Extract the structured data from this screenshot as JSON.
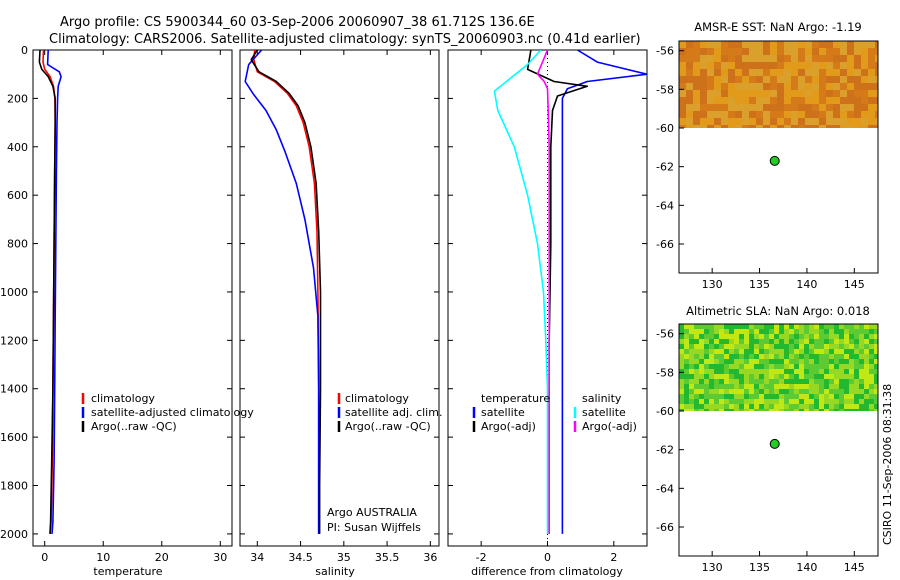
{
  "titles": {
    "line1": "Argo profile: CS 5900344_60 03-Sep-2006 20060907_38 61.712S 136.6E",
    "line2": "Climatology: CARS2006. Satellite-adjusted climatology: synTS_20060903.nc (0.41d earlier)"
  },
  "credit": "CSIRO 11-Sep-2006 08:31:38",
  "colors": {
    "climatology": "#ff0000",
    "satellite": "#0000ff",
    "argo": "#000000",
    "sat_diff_temp": "#00ffff",
    "argo_diff_sal": "#ff00ff"
  },
  "chart_data": [
    {
      "type": "line",
      "xlabel": "temperature",
      "ylabel": "",
      "xlim": [
        -2,
        32
      ],
      "ylim": [
        2050,
        0
      ],
      "xticks": [
        0,
        10,
        20,
        30
      ],
      "yticks": [
        0,
        200,
        400,
        600,
        800,
        1000,
        1200,
        1400,
        1600,
        1800,
        2000
      ],
      "legend_position": "lower-right",
      "series": [
        {
          "name": "climatology",
          "color": "#ff0000",
          "x": [
            -0.2,
            -0.3,
            0.0,
            0.9,
            1.5,
            1.75,
            1.8,
            1.7,
            1.6,
            1.5,
            1.4,
            1.3,
            1.1,
            0.9
          ],
          "y": [
            0,
            50,
            80,
            110,
            150,
            200,
            300,
            500,
            800,
            1100,
            1400,
            1700,
            1950,
            2000
          ]
        },
        {
          "name": "satellite-adjusted climatology",
          "color": "#0000ff",
          "x": [
            0.6,
            0.5,
            2.5,
            2.8,
            2.3,
            2.2,
            2.1,
            2.0,
            1.9,
            1.8,
            1.7,
            1.6,
            1.4,
            1.25
          ],
          "y": [
            0,
            60,
            90,
            110,
            150,
            200,
            300,
            500,
            800,
            1100,
            1400,
            1700,
            1950,
            2000
          ]
        },
        {
          "name": "Argo(..raw -QC)",
          "color": "#000000",
          "x": [
            -0.8,
            -0.9,
            -0.5,
            0.6,
            1.4,
            1.8,
            1.8,
            1.7,
            1.6,
            1.5,
            1.4,
            1.2,
            1.0,
            0.9
          ],
          "y": [
            0,
            50,
            80,
            110,
            150,
            200,
            300,
            500,
            800,
            1100,
            1400,
            1700,
            1950,
            2000
          ]
        }
      ],
      "legend": [
        "climatology",
        "satellite-adjusted climatology",
        "Argo(..raw -QC)"
      ]
    },
    {
      "type": "line",
      "xlabel": "salinity",
      "ylabel": "",
      "xlim": [
        33.8,
        36.1
      ],
      "ylim": [
        2050,
        0
      ],
      "xticks": [
        34,
        34.5,
        35,
        35.5,
        36
      ],
      "xticklabels": [
        "34",
        "34.5",
        "35",
        "35.5",
        "36"
      ],
      "legend_position": "lower-right",
      "series": [
        {
          "name": "climatology",
          "color": "#ff0000",
          "x": [
            33.97,
            33.96,
            34.0,
            34.2,
            34.35,
            34.45,
            34.53,
            34.6,
            34.66,
            34.69,
            34.7,
            34.71,
            34.71,
            34.71
          ],
          "y": [
            0,
            40,
            90,
            130,
            180,
            230,
            300,
            400,
            550,
            750,
            1000,
            1400,
            1800,
            2000
          ]
        },
        {
          "name": "satellite adj. clim.",
          "color": "#0000ff",
          "x": [
            34.05,
            33.9,
            33.86,
            33.95,
            34.1,
            34.22,
            34.32,
            34.45,
            34.55,
            34.65,
            34.7,
            34.71,
            34.71,
            34.71
          ],
          "y": [
            0,
            60,
            130,
            180,
            250,
            330,
            420,
            550,
            700,
            900,
            1100,
            1400,
            1800,
            2000
          ]
        },
        {
          "name": "Argo(..raw -QC)",
          "color": "#000000",
          "x": [
            34.0,
            33.93,
            34.02,
            34.22,
            34.37,
            34.47,
            34.55,
            34.62,
            34.68,
            34.71,
            34.73,
            34.73,
            34.72,
            34.72
          ],
          "y": [
            0,
            40,
            90,
            130,
            180,
            230,
            300,
            400,
            550,
            750,
            1000,
            1400,
            1800,
            2000
          ]
        }
      ],
      "legend": [
        "climatology",
        "satellite adj. clim.",
        "Argo(..raw -QC)"
      ],
      "annotations": [
        "Argo AUSTRALIA",
        "PI: Susan Wijffels"
      ]
    },
    {
      "type": "line",
      "xlabel": "difference from climatology",
      "ylabel": "",
      "xlim": [
        -3,
        3
      ],
      "ylim": [
        2050,
        0
      ],
      "xticks": [
        -2,
        0,
        2
      ],
      "legend_position": "lower-right",
      "legend_groups": [
        {
          "heading": "temperature",
          "entries": [
            "satellite",
            "Argo(-adj)"
          ]
        },
        {
          "heading": "salinity",
          "entries": [
            "satellite",
            "Argo(-adj)"
          ]
        }
      ],
      "series": [
        {
          "name": "temperature satellite",
          "color": "#0000ff",
          "x": [
            0.9,
            1.5,
            3.0,
            1.2,
            0.6,
            0.45,
            0.45,
            0.45,
            0.45,
            0.45,
            0.45,
            0.45
          ],
          "y": [
            0,
            50,
            100,
            130,
            160,
            200,
            400,
            800,
            1200,
            1600,
            1900,
            2000
          ]
        },
        {
          "name": "temperature Argo(-adj)",
          "color": "#000000",
          "x": [
            -0.5,
            -0.6,
            0.2,
            1.2,
            0.3,
            0.15,
            0.1,
            0.1,
            0.05,
            0.05,
            0.05,
            0.05
          ],
          "y": [
            0,
            80,
            130,
            150,
            190,
            250,
            400,
            800,
            1200,
            1600,
            1900,
            2000
          ]
        },
        {
          "name": "salinity satellite",
          "color": "#00ffff",
          "x": [
            -0.2,
            -0.6,
            -1.6,
            -1.5,
            -1.0,
            -0.6,
            -0.3,
            -0.12,
            -0.05,
            0.0,
            0.0,
            0.0
          ],
          "y": [
            0,
            60,
            170,
            250,
            400,
            600,
            800,
            1000,
            1200,
            1400,
            1700,
            2000
          ]
        },
        {
          "name": "salinity Argo(-adj)",
          "color": "#ff00ff",
          "x": [
            0.0,
            -0.3,
            -0.1,
            0.0,
            0.02,
            0.05,
            0.05,
            0.05,
            0.05,
            0.05
          ],
          "y": [
            0,
            100,
            130,
            160,
            250,
            400,
            800,
            1200,
            1600,
            2000
          ]
        }
      ]
    },
    {
      "type": "heatmap",
      "title": "AMSR-E SST: NaN Argo: -1.19",
      "xlim": [
        126.5,
        147.5
      ],
      "ylim": [
        -67.5,
        -55.5
      ],
      "xticks": [
        130,
        135,
        140,
        145
      ],
      "yticks": [
        -56,
        -58,
        -60,
        -62,
        -64,
        -66
      ],
      "data_extent_lat": [
        -60,
        -55.5
      ],
      "palette": [
        "#e09a1a",
        "#d2741a",
        "#d9a030",
        "#c96a1c"
      ],
      "marker": {
        "lon": 136.6,
        "lat": -61.7,
        "color": "#22cc22"
      }
    },
    {
      "type": "heatmap",
      "title": "Altimetric SLA: NaN Argo: 0.018",
      "xlim": [
        126.5,
        147.5
      ],
      "ylim": [
        -67.5,
        -55.5
      ],
      "xticks": [
        130,
        135,
        140,
        145
      ],
      "yticks": [
        -56,
        -58,
        -60,
        -62,
        -64,
        -66
      ],
      "data_extent_lat": [
        -60,
        -55.5
      ],
      "palette": [
        "#22b830",
        "#66cc33",
        "#aadd22",
        "#ddee11"
      ],
      "marker": {
        "lon": 136.6,
        "lat": -61.7,
        "color": "#22cc22"
      }
    }
  ]
}
